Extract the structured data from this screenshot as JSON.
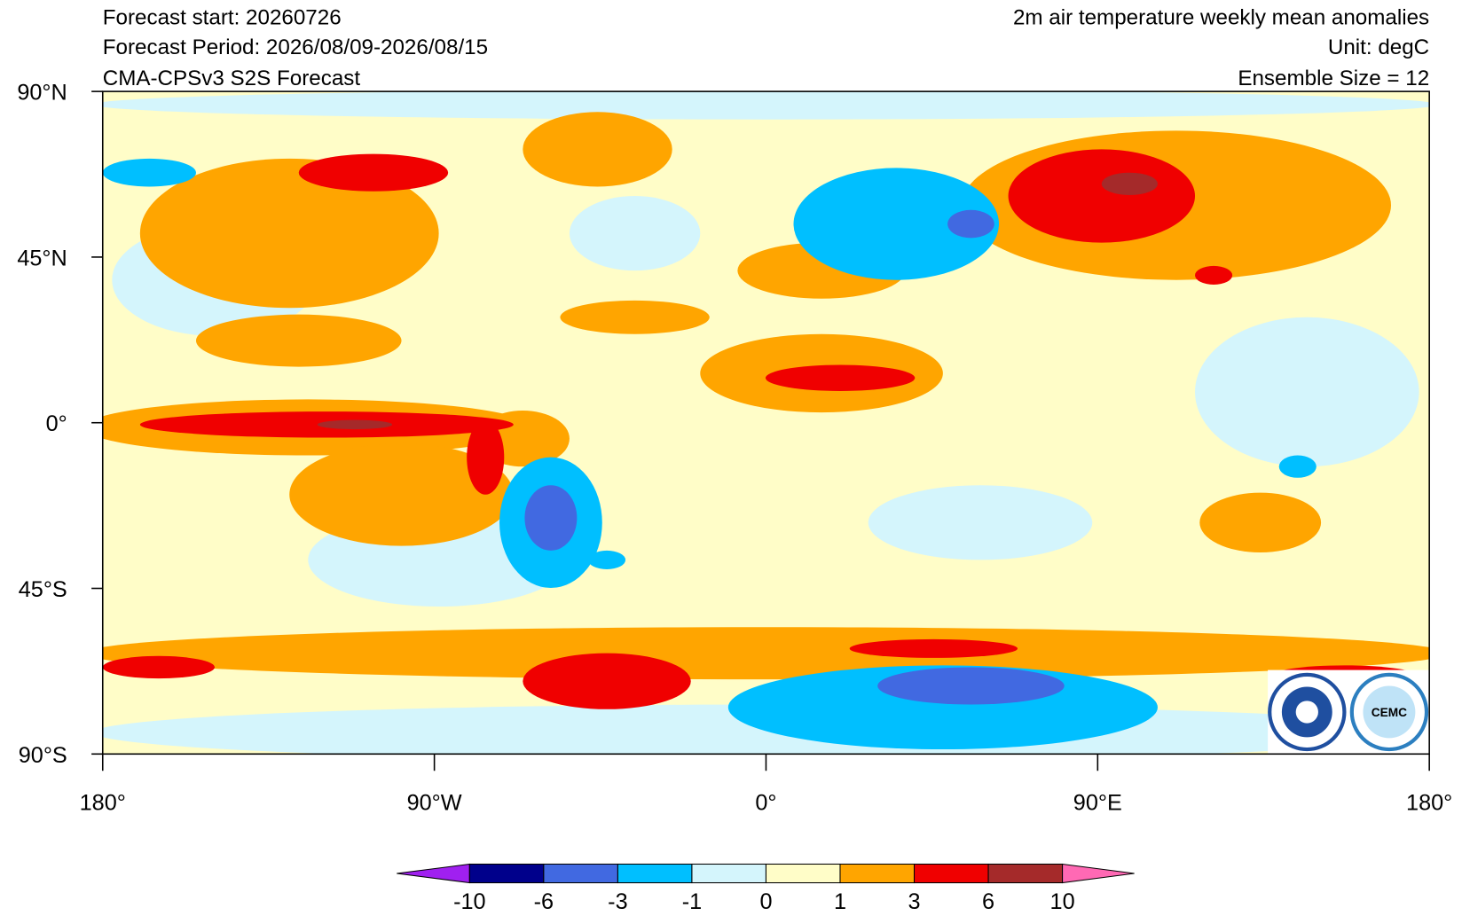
{
  "header": {
    "left": [
      "Forecast start: 20260726",
      "Forecast Period: 2026/08/09-2026/08/15",
      "CMA-CPSv3 S2S Forecast"
    ],
    "right": [
      "2m air temperature weekly mean anomalies",
      "Unit: degC",
      "Ensemble Size = 12"
    ]
  },
  "map": {
    "lat_labels": [
      "90°N",
      "45°N",
      "0°",
      "45°S",
      "90°S"
    ],
    "lon_labels": [
      "180°",
      "90°W",
      "0°",
      "90°E",
      "180°"
    ],
    "logo_text": "CEMC"
  },
  "colorbar": {
    "levels": [
      -10,
      -6,
      -3,
      -1,
      0,
      1,
      3,
      6,
      10
    ],
    "colors": [
      "#a020f0",
      "#00008b",
      "#4169e1",
      "#00bfff",
      "#d4f5fc",
      "#fffdc8",
      "#ffa500",
      "#f00000",
      "#a52a2a",
      "#ff69b4"
    ]
  }
}
